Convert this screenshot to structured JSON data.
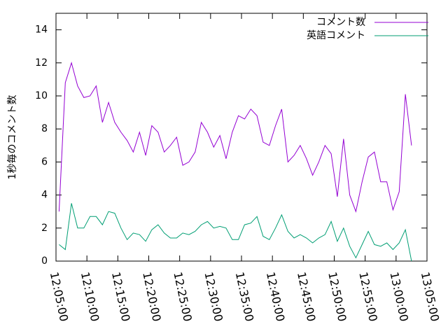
{
  "chart_data": {
    "type": "line",
    "ylabel": "1秒毎のコメント数",
    "x": [
      "12:05:30",
      "12:06:30",
      "12:07:30",
      "12:08:30",
      "12:09:30",
      "12:10:30",
      "12:11:30",
      "12:12:30",
      "12:13:30",
      "12:14:30",
      "12:15:30",
      "12:16:30",
      "12:17:30",
      "12:18:30",
      "12:19:30",
      "12:20:30",
      "12:21:30",
      "12:22:30",
      "12:23:30",
      "12:24:30",
      "12:25:30",
      "12:26:30",
      "12:27:30",
      "12:28:30",
      "12:29:30",
      "12:30:30",
      "12:31:30",
      "12:32:30",
      "12:33:30",
      "12:34:30",
      "12:35:30",
      "12:36:30",
      "12:37:30",
      "12:38:30",
      "12:39:30",
      "12:40:30",
      "12:41:30",
      "12:42:30",
      "12:43:30",
      "12:44:30",
      "12:45:30",
      "12:46:30",
      "12:47:30",
      "12:48:30",
      "12:49:30",
      "12:50:30",
      "12:51:30",
      "12:52:30",
      "12:53:30",
      "12:54:30",
      "12:55:30",
      "12:56:30",
      "12:57:30",
      "12:58:30",
      "12:59:30",
      "13:00:30",
      "13:01:30",
      "13:02:30"
    ],
    "series": [
      {
        "name": "コメント数",
        "color": "#9400d3",
        "values": [
          3.0,
          10.8,
          12.0,
          10.6,
          9.9,
          10.0,
          10.6,
          8.4,
          9.6,
          8.4,
          7.8,
          7.3,
          6.6,
          7.8,
          6.4,
          8.2,
          7.8,
          6.6,
          7.0,
          7.5,
          5.8,
          6.0,
          6.6,
          8.4,
          7.8,
          6.9,
          7.6,
          6.2,
          7.8,
          8.8,
          8.6,
          9.2,
          8.8,
          7.2,
          7.0,
          8.2,
          9.2,
          6.0,
          6.4,
          7.0,
          6.2,
          5.2,
          6.0,
          7.0,
          6.5,
          3.9,
          7.4,
          4.0,
          3.0,
          4.8,
          6.3,
          6.6,
          4.8,
          4.8,
          3.1,
          4.2,
          10.1,
          7.0
        ]
      },
      {
        "name": "英語コメント",
        "color": "#009e73",
        "values": [
          1.0,
          0.7,
          3.5,
          2.0,
          2.0,
          2.7,
          2.7,
          2.2,
          3.0,
          2.9,
          2.0,
          1.3,
          1.7,
          1.6,
          1.2,
          1.9,
          2.2,
          1.7,
          1.4,
          1.4,
          1.7,
          1.6,
          1.8,
          2.2,
          2.4,
          2.0,
          2.1,
          2.0,
          1.3,
          1.3,
          2.2,
          2.3,
          2.7,
          1.5,
          1.3,
          2.0,
          2.8,
          1.8,
          1.4,
          1.6,
          1.4,
          1.1,
          1.4,
          1.6,
          2.4,
          1.2,
          2.0,
          0.9,
          0.2,
          1.0,
          1.8,
          1.0,
          0.9,
          1.1,
          0.7,
          1.1,
          1.9,
          0.0
        ]
      }
    ],
    "xlim": [
      "12:05:00",
      "13:05:00"
    ],
    "xticks": [
      "12:05:00",
      "12:10:00",
      "12:15:00",
      "12:20:00",
      "12:25:00",
      "12:30:00",
      "12:35:00",
      "12:40:00",
      "12:45:00",
      "12:50:00",
      "12:55:00",
      "13:00:00",
      "13:05:00"
    ],
    "ylim": [
      0,
      15
    ],
    "yticks": [
      0,
      2,
      4,
      6,
      8,
      10,
      12,
      14
    ],
    "legend": "top-right",
    "grid": false
  }
}
